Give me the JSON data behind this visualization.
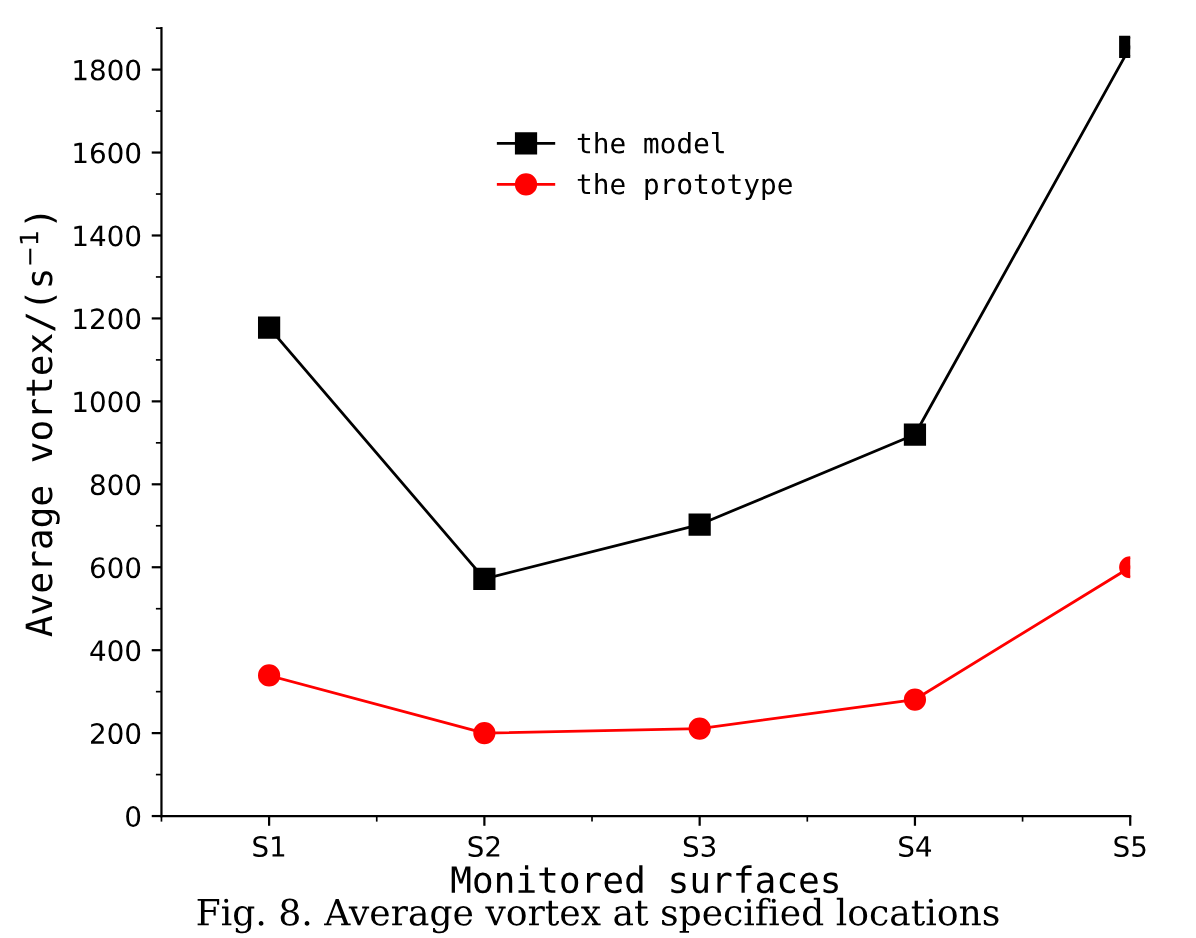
{
  "chart_data": {
    "type": "line",
    "xlabel": "Monitored surfaces",
    "ylabel": "Average vortex/(s$^{−1}$)",
    "categories": [
      "S1",
      "S2",
      "S3",
      "S4",
      "S5"
    ],
    "series": [
      {
        "name": "the model",
        "color": "#000000",
        "marker": "square",
        "values": [
          1178,
          572,
          703,
          920,
          1855
        ]
      },
      {
        "name": "the prototype",
        "color": "#ff0000",
        "marker": "circle",
        "values": [
          339,
          200,
          211,
          281,
          600
        ]
      }
    ],
    "ylim": [
      0,
      1900
    ],
    "yticks": [
      0,
      200,
      400,
      600,
      800,
      1000,
      1200,
      1400,
      1600,
      1800
    ],
    "grid": false,
    "legend": "top",
    "line_style": "solid",
    "annotations": [
      "Fig. 8. Average vortex at specified locations"
    ]
  }
}
